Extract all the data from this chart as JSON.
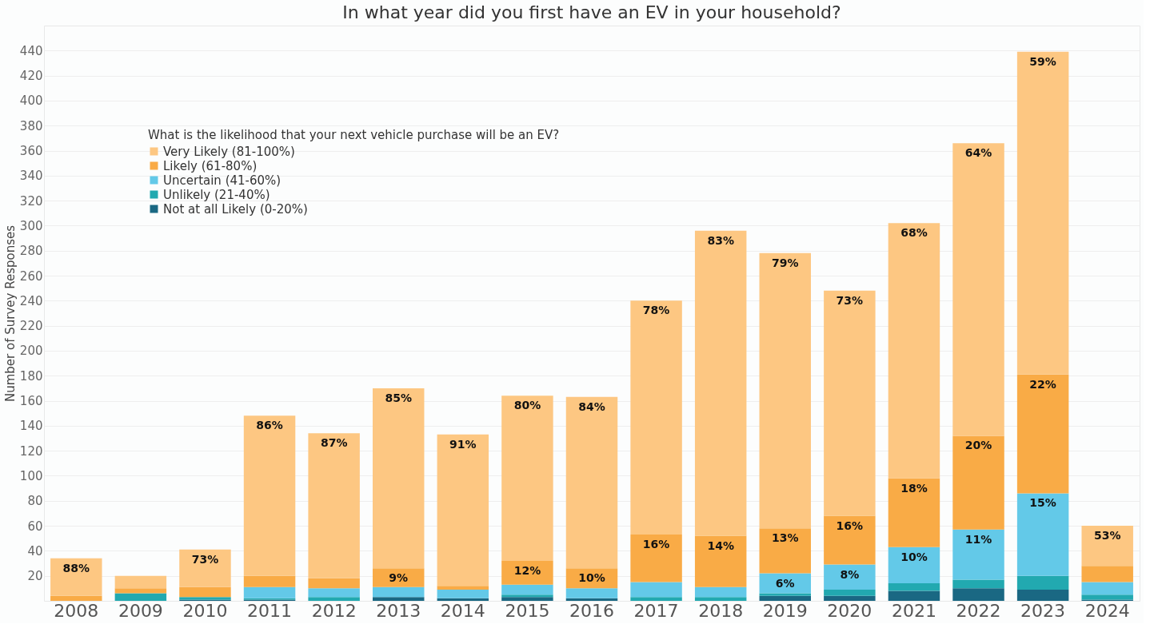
{
  "chart_data": {
    "type": "bar",
    "title": "In what year did you first have an EV in your household?",
    "ylabel": "Number of Survey Responses",
    "legend_title": "What is the likelihood that your next vehicle purchase will be an EV?",
    "legend": "top left",
    "grid": "y",
    "stacked": true,
    "categories": [
      "2008",
      "2009",
      "2010",
      "2011",
      "2012",
      "2013",
      "2014",
      "2015",
      "2016",
      "2017",
      "2018",
      "2019",
      "2020",
      "2021",
      "2022",
      "2023",
      "2024"
    ],
    "annotations": [
      {
        "text": "88%",
        "x": "2008",
        "y": 34
      },
      {
        "text": "73%",
        "x": "2010",
        "y": 41
      },
      {
        "text": "86%",
        "x": "2011",
        "y": 148
      },
      {
        "text": "87%",
        "x": "2012",
        "y": 134
      },
      {
        "text": "85%",
        "x": "2013",
        "y": 170
      },
      {
        "text": "9%",
        "x": "2013",
        "y": 26
      },
      {
        "text": "91%",
        "x": "2014",
        "y": 133
      },
      {
        "text": "80%",
        "x": "2015",
        "y": 164
      },
      {
        "text": "12%",
        "x": "2015",
        "y": 32
      },
      {
        "text": "84%",
        "x": "2016",
        "y": 163
      },
      {
        "text": "10%",
        "x": "2016",
        "y": 26
      },
      {
        "text": "78%",
        "x": "2017",
        "y": 240
      },
      {
        "text": "16%",
        "x": "2017",
        "y": 53
      },
      {
        "text": "83%",
        "x": "2018",
        "y": 296
      },
      {
        "text": "14%",
        "x": "2018",
        "y": 52
      },
      {
        "text": "79%",
        "x": "2019",
        "y": 278
      },
      {
        "text": "13%",
        "x": "2019",
        "y": 58
      },
      {
        "text": "6%",
        "x": "2019",
        "y": 22
      },
      {
        "text": "73%",
        "x": "2020",
        "y": 248
      },
      {
        "text": "16%",
        "x": "2020",
        "y": 68
      },
      {
        "text": "8%",
        "x": "2020",
        "y": 29
      },
      {
        "text": "68%",
        "x": "2021",
        "y": 302
      },
      {
        "text": "18%",
        "x": "2021",
        "y": 98
      },
      {
        "text": "10%",
        "x": "2021",
        "y": 43
      },
      {
        "text": "64%",
        "x": "2022",
        "y": 366
      },
      {
        "text": "20%",
        "x": "2022",
        "y": 132
      },
      {
        "text": "11%",
        "x": "2022",
        "y": 57
      },
      {
        "text": "59%",
        "x": "2023",
        "y": 439
      },
      {
        "text": "22%",
        "x": "2023",
        "y": 181
      },
      {
        "text": "15%",
        "x": "2023",
        "y": 86
      },
      {
        "text": "53%",
        "x": "2024",
        "y": 60
      }
    ],
    "ylim": [
      0,
      460
    ],
    "yticks": [
      20,
      40,
      60,
      80,
      100,
      120,
      140,
      160,
      180,
      200,
      220,
      240,
      260,
      280,
      300,
      320,
      340,
      360,
      380,
      400,
      420,
      440
    ],
    "series": [
      {
        "name": "Not at all Likely (0-20%)",
        "color": "#1a6883",
        "values": [
          0,
          0,
          1,
          1,
          0,
          3,
          2,
          3,
          2,
          0,
          0,
          4,
          4,
          8,
          10,
          9,
          1
        ]
      },
      {
        "name": "Unlikely (21-40%)",
        "color": "#22a9b0",
        "values": [
          0,
          6,
          2,
          1,
          3,
          0,
          0,
          2,
          0,
          3,
          3,
          2,
          5,
          6,
          7,
          11,
          4
        ]
      },
      {
        "name": "Uncertain (41-60%)",
        "color": "#63c9e8",
        "values": [
          0,
          0,
          0,
          9,
          7,
          8,
          7,
          8,
          8,
          12,
          8,
          16,
          20,
          29,
          40,
          66,
          10
        ]
      },
      {
        "name": "Likely (61-80%)",
        "color": "#f9ab46",
        "values": [
          4,
          4,
          8,
          9,
          8,
          15,
          3,
          19,
          16,
          38,
          41,
          36,
          39,
          55,
          75,
          95,
          13
        ]
      },
      {
        "name": "Very Likely (81-100%)",
        "color": "#fdc782",
        "values": [
          30,
          10,
          30,
          128,
          116,
          144,
          121,
          132,
          137,
          187,
          244,
          220,
          180,
          204,
          234,
          258,
          32
        ]
      }
    ]
  }
}
